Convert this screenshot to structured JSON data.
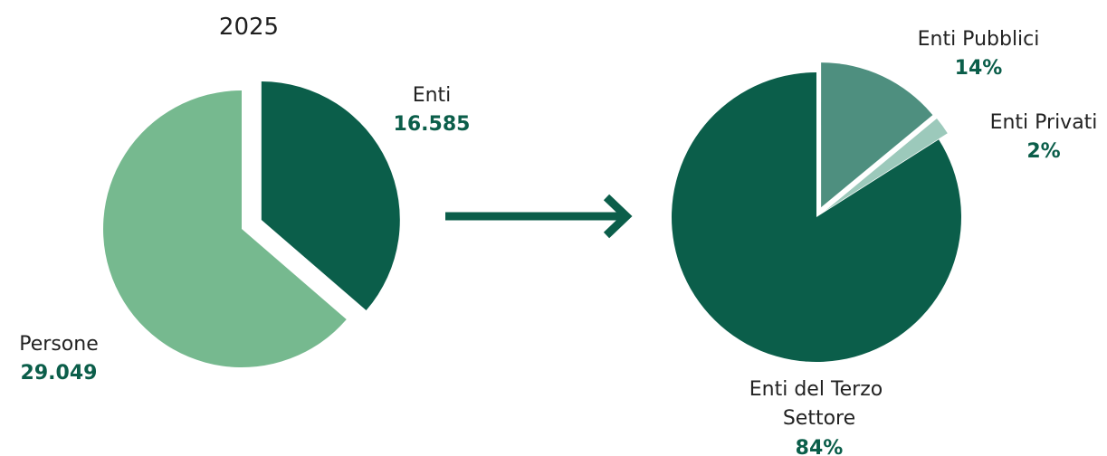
{
  "chart_data": [
    {
      "type": "pie",
      "title": "2025",
      "slices": [
        {
          "label": "Enti",
          "value": 16585,
          "value_label": "16.585",
          "color": "#0b5e4a",
          "exploded": true
        },
        {
          "label": "Persone",
          "value": 29049,
          "value_label": "29.049",
          "color": "#76b98f",
          "exploded": false
        }
      ]
    },
    {
      "type": "pie",
      "title": "",
      "slices": [
        {
          "label": "Enti Pubblici",
          "value": 14,
          "value_label": "14%",
          "color": "#4e8f7f",
          "exploded": true
        },
        {
          "label": "Enti Privati",
          "value": 2,
          "value_label": "2%",
          "color": "#9cc9bb",
          "exploded": true
        },
        {
          "label": "Enti del Terzo Settore",
          "value": 84,
          "value_label": "84%",
          "color": "#0b5e4a",
          "exploded": false
        }
      ]
    }
  ],
  "arrow": {
    "color": "#0b5e4a",
    "icon": "arrow-right-icon"
  }
}
